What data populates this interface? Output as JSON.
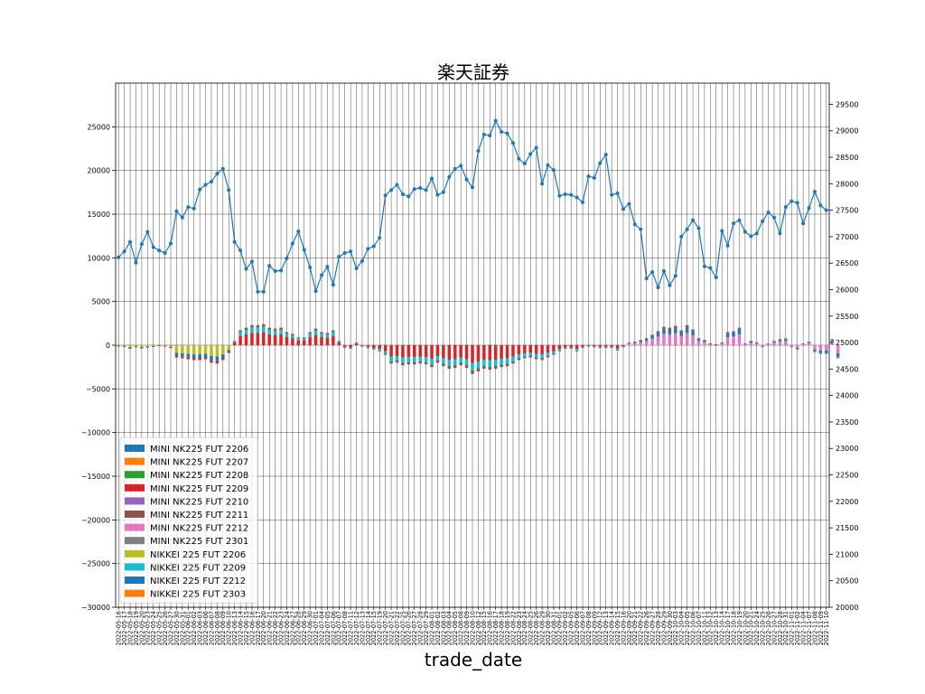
{
  "chart_data": {
    "type": "bar+line",
    "title": "楽天証券",
    "xlabel": "trade_date",
    "ylabel": "",
    "ylabel_right": "",
    "ylim": [
      -30000,
      30000
    ],
    "y2lim": [
      20000,
      29900
    ],
    "yticks": [
      -30000,
      -25000,
      -20000,
      -15000,
      -10000,
      -5000,
      0,
      5000,
      10000,
      15000,
      20000,
      25000
    ],
    "y2ticks": [
      20000,
      20500,
      21000,
      21500,
      22000,
      22500,
      23000,
      23500,
      24000,
      24500,
      25000,
      25500,
      26000,
      26500,
      27000,
      27500,
      28000,
      28500,
      29000,
      29500
    ],
    "grid": true,
    "legend_position": "lower-left",
    "series_colors": {
      "MINI NK225 FUT 2206": "#1f77b4",
      "MINI NK225 FUT 2207": "#ff7f0e",
      "MINI NK225 FUT 2208": "#2ca02c",
      "MINI NK225 FUT 2209": "#d62728",
      "MINI NK225 FUT 2210": "#9467bd",
      "MINI NK225 FUT 2211": "#8c564b",
      "MINI NK225 FUT 2212": "#e377c2",
      "MINI NK225 FUT 2301": "#7f7f7f",
      "NIKKEI 225 FUT 2206": "#bcbd22",
      "NIKKEI 225 FUT 2209": "#17becf",
      "NIKKEI 225 FUT 2212": "#1f77b4",
      "NIKKEI 225 FUT 2303": "#ff7f0e",
      "price_line": "#1f77b4"
    },
    "legend": [
      "MINI NK225 FUT 2206",
      "MINI NK225 FUT 2207",
      "MINI NK225 FUT 2208",
      "MINI NK225 FUT 2209",
      "MINI NK225 FUT 2210",
      "MINI NK225 FUT 2211",
      "MINI NK225 FUT 2212",
      "MINI NK225 FUT 2301",
      "NIKKEI 225 FUT 2206",
      "NIKKEI 225 FUT 2209",
      "NIKKEI 225 FUT 2212",
      "NIKKEI 225 FUT 2303"
    ],
    "x": [
      "2022-05-16",
      "2022-05-17",
      "2022-05-18",
      "2022-05-19",
      "2022-05-20",
      "2022-05-23",
      "2022-05-24",
      "2022-05-25",
      "2022-05-26",
      "2022-05-27",
      "2022-05-30",
      "2022-05-31",
      "2022-06-01",
      "2022-06-02",
      "2022-06-03",
      "2022-06-06",
      "2022-06-07",
      "2022-06-08",
      "2022-06-09",
      "2022-06-10",
      "2022-06-13",
      "2022-06-14",
      "2022-06-15",
      "2022-06-16",
      "2022-06-17",
      "2022-06-20",
      "2022-06-21",
      "2022-06-22",
      "2022-06-23",
      "2022-06-24",
      "2022-06-27",
      "2022-06-28",
      "2022-06-29",
      "2022-06-30",
      "2022-07-01",
      "2022-07-04",
      "2022-07-05",
      "2022-07-06",
      "2022-07-07",
      "2022-07-08",
      "2022-07-11",
      "2022-07-12",
      "2022-07-13",
      "2022-07-14",
      "2022-07-15",
      "2022-07-19",
      "2022-07-20",
      "2022-07-21",
      "2022-07-22",
      "2022-07-25",
      "2022-07-26",
      "2022-07-27",
      "2022-07-28",
      "2022-07-29",
      "2022-08-01",
      "2022-08-02",
      "2022-08-03",
      "2022-08-04",
      "2022-08-05",
      "2022-08-08",
      "2022-08-09",
      "2022-08-10",
      "2022-08-12",
      "2022-08-15",
      "2022-08-16",
      "2022-08-17",
      "2022-08-18",
      "2022-08-19",
      "2022-08-22",
      "2022-08-23",
      "2022-08-24",
      "2022-08-25",
      "2022-08-26",
      "2022-08-29",
      "2022-08-30",
      "2022-08-31",
      "2022-09-01",
      "2022-09-02",
      "2022-09-05",
      "2022-09-06",
      "2022-09-07",
      "2022-09-08",
      "2022-09-09",
      "2022-09-12",
      "2022-09-13",
      "2022-09-14",
      "2022-09-15",
      "2022-09-16",
      "2022-09-20",
      "2022-09-21",
      "2022-09-22",
      "2022-09-26",
      "2022-09-27",
      "2022-09-28",
      "2022-09-29",
      "2022-09-30",
      "2022-10-03",
      "2022-10-04",
      "2022-10-05",
      "2022-10-06",
      "2022-10-07",
      "2022-10-11",
      "2022-10-12",
      "2022-10-13",
      "2022-10-14",
      "2022-10-17",
      "2022-10-18",
      "2022-10-19",
      "2022-10-20",
      "2022-10-21",
      "2022-10-24",
      "2022-10-25",
      "2022-10-26",
      "2022-10-27",
      "2022-10-28",
      "2022-10-31",
      "2022-11-01",
      "2022-11-02",
      "2022-11-04",
      "2022-11-07",
      "2022-11-08",
      "2022-11-09",
      "2022-11-10"
    ],
    "net_position": [
      -100,
      -150,
      -400,
      -200,
      -350,
      -250,
      -150,
      -50,
      -100,
      -300,
      -1400,
      -1500,
      -1600,
      -1700,
      -1700,
      -1600,
      -2000,
      -2100,
      -1700,
      -900,
      500,
      1700,
      2000,
      2300,
      2300,
      2400,
      2000,
      1900,
      2000,
      1500,
      1300,
      900,
      900,
      1500,
      1900,
      1500,
      1400,
      1700,
      500,
      -300,
      -400,
      300,
      -100,
      -300,
      -500,
      -700,
      -1100,
      -2100,
      -2000,
      -2300,
      -2200,
      -2200,
      -2100,
      -2200,
      -2500,
      -2000,
      -2400,
      -2700,
      -2600,
      -2300,
      -2600,
      -3300,
      -3000,
      -2700,
      -2800,
      -2700,
      -2500,
      -2400,
      -2100,
      -1700,
      -1500,
      -1400,
      -1600,
      -1700,
      -1400,
      -1100,
      -700,
      -400,
      -400,
      -700,
      -300,
      -100,
      -200,
      -300,
      -300,
      -300,
      -600,
      -200,
      300,
      400,
      600,
      800,
      1200,
      1600,
      2100,
      2000,
      2200,
      1700,
      2300,
      1800,
      800,
      600,
      200,
      100,
      300,
      1500,
      1600,
      2000,
      200,
      500,
      300,
      -200,
      200,
      500,
      700,
      800,
      -200,
      -500,
      200,
      400,
      -800,
      -1000,
      -1000,
      700,
      -1500
    ]
  },
  "price_series": [
    26610,
    26720,
    26900,
    26510,
    26860,
    27090,
    26800,
    26740,
    26690,
    26870,
    27480,
    27360,
    27560,
    27530,
    27890,
    27980,
    28040,
    28190,
    28280,
    27880,
    26900,
    26740,
    26390,
    26530,
    25960,
    25960,
    26450,
    26350,
    26360,
    26590,
    26870,
    27100,
    26750,
    26420,
    25970,
    26270,
    26430,
    26090,
    26620,
    26690,
    26720,
    26400,
    26540,
    26770,
    26820,
    26980,
    27780,
    27880,
    27980,
    27800,
    27760,
    27900,
    27920,
    27880,
    28100,
    27790,
    27840,
    28130,
    28280,
    28340,
    28080,
    27930,
    28620,
    28930,
    28910,
    29190,
    28980,
    28950,
    28770,
    28470,
    28380,
    28560,
    28680,
    28000,
    28350,
    28260,
    27770,
    27800,
    27790,
    27740,
    27650,
    28140,
    28110,
    28390,
    28550,
    27790,
    27820,
    27520,
    27620,
    27230,
    27140,
    26210,
    26330,
    26040,
    26350,
    26080,
    26260,
    27000,
    27140,
    27310,
    27160,
    26440,
    26410,
    26230,
    27110,
    26830,
    27250,
    27310,
    27090,
    27010,
    27060,
    27290,
    27460,
    27360,
    27060,
    27560,
    27670,
    27640,
    27250,
    27540,
    27850,
    27590,
    27500
  ],
  "price_y_range": [
    20000,
    29900
  ]
}
